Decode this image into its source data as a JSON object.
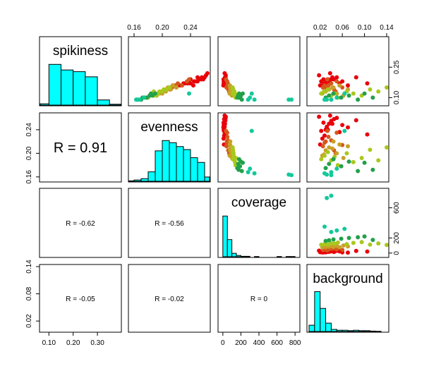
{
  "chart_data": {
    "type": "scatter",
    "kind": "pairs-matrix",
    "variables": [
      "spikiness",
      "evenness",
      "coverage",
      "background"
    ],
    "axis_ticks": {
      "spikiness": [
        "0.10",
        "0.20",
        "0.30"
      ],
      "evenness": [
        "0.16",
        "0.20",
        "0.24"
      ],
      "coverage": [
        "0",
        "200",
        "400",
        "600",
        "800"
      ],
      "background": [
        "0.02",
        "0.06",
        "0.10",
        "0.14"
      ]
    },
    "axis_ticks_right": {
      "spikiness": [
        "0.10",
        "0.15",
        "0.20",
        "0.25"
      ],
      "coverage": [
        "0",
        "200",
        "400",
        "600"
      ]
    },
    "axis_tick_labels_shown": {
      "bottom_spikiness": [
        "0.10",
        "0.20",
        "0.30"
      ],
      "top_evenness": [
        "0.16",
        "0.20",
        "0.24"
      ],
      "bottom_coverage": [
        "0",
        "200",
        "400",
        "600",
        "800"
      ],
      "top_background": [
        "0.02",
        "0.06",
        "0.10",
        "0.14"
      ],
      "left_evenness": [
        "0.16",
        "0.20",
        "0.24"
      ],
      "left_background": [
        "0.02",
        "0.08",
        "0.14"
      ],
      "right_spikiness": [
        "0.10",
        "0.25"
      ],
      "right_coverage": [
        "0",
        "200",
        "600"
      ]
    },
    "axis_ranges": {
      "spikiness": [
        0.07,
        0.39
      ],
      "evenness": [
        0.155,
        0.265
      ],
      "coverage": [
        -30,
        830
      ],
      "background": [
        0.0,
        0.14
      ]
    },
    "correlations": [
      {
        "row": "evenness",
        "col": "spikiness",
        "label": "R = 0.91",
        "size": "large"
      },
      {
        "row": "coverage",
        "col": "spikiness",
        "label": "R = -0.62",
        "size": "small"
      },
      {
        "row": "coverage",
        "col": "evenness",
        "label": "R = -0.56",
        "size": "small"
      },
      {
        "row": "background",
        "col": "spikiness",
        "label": "R = -0.05",
        "size": "small"
      },
      {
        "row": "background",
        "col": "evenness",
        "label": "R = -0.02",
        "size": "small"
      },
      {
        "row": "background",
        "col": "coverage",
        "label": "R = 0",
        "size": "small"
      }
    ],
    "histograms": {
      "spikiness": {
        "breaks": [
          0.05,
          0.1,
          0.15,
          0.2,
          0.25,
          0.3,
          0.35,
          0.4
        ],
        "density": [
          0.03,
          0.95,
          0.82,
          0.78,
          0.66,
          0.12,
          0.02
        ]
      },
      "evenness": {
        "breaks": [
          0.15,
          0.16,
          0.17,
          0.18,
          0.19,
          0.2,
          0.21,
          0.22,
          0.23,
          0.24,
          0.25,
          0.26,
          0.27
        ],
        "density": [
          0.01,
          0.03,
          0.06,
          0.22,
          0.71,
          0.95,
          0.9,
          0.81,
          0.74,
          0.55,
          0.44,
          0.1
        ]
      },
      "coverage": {
        "breaks": [
          0,
          50,
          100,
          150,
          200,
          250,
          300,
          350,
          400,
          450,
          500,
          550,
          600,
          650,
          700,
          750,
          800
        ],
        "density": [
          0.95,
          0.4,
          0.08,
          0.03,
          0.01,
          0.01,
          0,
          0.005,
          0,
          0,
          0,
          0,
          0.005,
          0,
          0.005,
          0.005
        ]
      },
      "background": {
        "breaks": [
          0,
          0.01,
          0.02,
          0.03,
          0.04,
          0.05,
          0.06,
          0.07,
          0.08,
          0.09,
          0.1,
          0.11,
          0.12,
          0.13,
          0.14
        ],
        "density": [
          0.15,
          0.95,
          0.55,
          0.2,
          0.05,
          0.03,
          0.03,
          0.02,
          0.03,
          0.02,
          0.02,
          0.01,
          0.005,
          0
        ]
      }
    },
    "points": [
      {
        "s": 0.16,
        "e": 0.215,
        "c": 12,
        "b": 0.02,
        "color": "#e8000a"
      },
      {
        "s": 0.16,
        "e": 0.225,
        "c": 8,
        "b": 0.024,
        "color": "#e8000a"
      },
      {
        "s": 0.17,
        "e": 0.23,
        "c": 15,
        "b": 0.028,
        "color": "#e8000a"
      },
      {
        "s": 0.17,
        "e": 0.24,
        "c": 10,
        "b": 0.03,
        "color": "#e8000a"
      },
      {
        "s": 0.18,
        "e": 0.245,
        "c": 20,
        "b": 0.032,
        "color": "#e8000a"
      },
      {
        "s": 0.18,
        "e": 0.25,
        "c": 18,
        "b": 0.036,
        "color": "#e8000a"
      },
      {
        "s": 0.19,
        "e": 0.255,
        "c": 25,
        "b": 0.04,
        "color": "#e8000a"
      },
      {
        "s": 0.19,
        "e": 0.258,
        "c": 14,
        "b": 0.045,
        "color": "#e8000a"
      },
      {
        "s": 0.2,
        "e": 0.26,
        "c": 30,
        "b": 0.05,
        "color": "#e8000a"
      },
      {
        "s": 0.17,
        "e": 0.236,
        "c": 22,
        "b": 0.055,
        "color": "#e8000a"
      },
      {
        "s": 0.18,
        "e": 0.248,
        "c": 10,
        "b": 0.06,
        "color": "#e8000a"
      },
      {
        "s": 0.16,
        "e": 0.244,
        "c": 6,
        "b": 0.07,
        "color": "#e8000a"
      },
      {
        "s": 0.2,
        "e": 0.256,
        "c": 28,
        "b": 0.085,
        "color": "#e8000a"
      },
      {
        "s": 0.17,
        "e": 0.232,
        "c": 20,
        "b": 0.105,
        "color": "#e8000a"
      },
      {
        "s": 0.18,
        "e": 0.238,
        "c": 12,
        "b": 0.022,
        "color": "#e8000a"
      },
      {
        "s": 0.19,
        "e": 0.252,
        "c": 8,
        "b": 0.026,
        "color": "#e8000a"
      },
      {
        "s": 0.21,
        "e": 0.262,
        "c": 32,
        "b": 0.018,
        "color": "#e8000a"
      },
      {
        "s": 0.19,
        "e": 0.24,
        "c": 16,
        "b": 0.034,
        "color": "#e8000a"
      },
      {
        "s": 0.22,
        "e": 0.264,
        "c": 20,
        "b": 0.038,
        "color": "#e8000a"
      },
      {
        "s": 0.2,
        "e": 0.25,
        "c": 24,
        "b": 0.042,
        "color": "#e8000a"
      },
      {
        "s": 0.15,
        "e": 0.212,
        "c": 40,
        "b": 0.025,
        "color": "#d4581c"
      },
      {
        "s": 0.15,
        "e": 0.22,
        "c": 45,
        "b": 0.03,
        "color": "#d4581c"
      },
      {
        "s": 0.16,
        "e": 0.228,
        "c": 50,
        "b": 0.035,
        "color": "#d4581c"
      },
      {
        "s": 0.17,
        "e": 0.222,
        "c": 55,
        "b": 0.04,
        "color": "#d4581c"
      },
      {
        "s": 0.14,
        "e": 0.205,
        "c": 60,
        "b": 0.045,
        "color": "#d4581c"
      },
      {
        "s": 0.18,
        "e": 0.235,
        "c": 48,
        "b": 0.05,
        "color": "#d4581c"
      },
      {
        "s": 0.16,
        "e": 0.218,
        "c": 58,
        "b": 0.028,
        "color": "#d4581c"
      },
      {
        "s": 0.15,
        "e": 0.214,
        "c": 42,
        "b": 0.06,
        "color": "#d4581c"
      },
      {
        "s": 0.19,
        "e": 0.238,
        "c": 35,
        "b": 0.033,
        "color": "#d4581c"
      },
      {
        "s": 0.13,
        "e": 0.2,
        "c": 70,
        "b": 0.048,
        "color": "#d4581c"
      },
      {
        "s": 0.12,
        "e": 0.196,
        "c": 75,
        "b": 0.024,
        "color": "#c8a028"
      },
      {
        "s": 0.13,
        "e": 0.205,
        "c": 80,
        "b": 0.03,
        "color": "#c8a028"
      },
      {
        "s": 0.14,
        "e": 0.21,
        "c": 85,
        "b": 0.036,
        "color": "#c8a028"
      },
      {
        "s": 0.15,
        "e": 0.208,
        "c": 90,
        "b": 0.042,
        "color": "#c8a028"
      },
      {
        "s": 0.12,
        "e": 0.2,
        "c": 95,
        "b": 0.05,
        "color": "#c8a028"
      },
      {
        "s": 0.16,
        "e": 0.215,
        "c": 78,
        "b": 0.055,
        "color": "#c8a028"
      },
      {
        "s": 0.11,
        "e": 0.192,
        "c": 100,
        "b": 0.062,
        "color": "#c8a028"
      },
      {
        "s": 0.14,
        "e": 0.212,
        "c": 88,
        "b": 0.07,
        "color": "#c8a028"
      },
      {
        "s": 0.13,
        "e": 0.198,
        "c": 92,
        "b": 0.027,
        "color": "#c8a028"
      },
      {
        "s": 0.15,
        "e": 0.22,
        "c": 82,
        "b": 0.044,
        "color": "#c8a028"
      },
      {
        "s": 0.12,
        "e": 0.19,
        "c": 110,
        "b": 0.022,
        "color": "#a8c81e"
      },
      {
        "s": 0.13,
        "e": 0.196,
        "c": 120,
        "b": 0.028,
        "color": "#a8c81e"
      },
      {
        "s": 0.14,
        "e": 0.202,
        "c": 115,
        "b": 0.034,
        "color": "#a8c81e"
      },
      {
        "s": 0.11,
        "e": 0.188,
        "c": 130,
        "b": 0.04,
        "color": "#a8c81e"
      },
      {
        "s": 0.12,
        "e": 0.194,
        "c": 125,
        "b": 0.046,
        "color": "#a8c81e"
      },
      {
        "s": 0.1,
        "e": 0.18,
        "c": 140,
        "b": 0.052,
        "color": "#a8c81e"
      },
      {
        "s": 0.13,
        "e": 0.2,
        "c": 118,
        "b": 0.068,
        "color": "#a8c81e"
      },
      {
        "s": 0.12,
        "e": 0.185,
        "c": 135,
        "b": 0.08,
        "color": "#a8c81e"
      },
      {
        "s": 0.11,
        "e": 0.192,
        "c": 145,
        "b": 0.095,
        "color": "#a8c81e"
      },
      {
        "s": 0.14,
        "e": 0.206,
        "c": 112,
        "b": 0.11,
        "color": "#a8c81e"
      },
      {
        "s": 0.13,
        "e": 0.188,
        "c": 128,
        "b": 0.125,
        "color": "#a8c81e"
      },
      {
        "s": 0.15,
        "e": 0.21,
        "c": 108,
        "b": 0.14,
        "color": "#a8c81e"
      },
      {
        "s": 0.1,
        "e": 0.175,
        "c": 160,
        "b": 0.03,
        "color": "#22a04a"
      },
      {
        "s": 0.11,
        "e": 0.182,
        "c": 170,
        "b": 0.036,
        "color": "#22a04a"
      },
      {
        "s": 0.12,
        "e": 0.19,
        "c": 180,
        "b": 0.044,
        "color": "#22a04a"
      },
      {
        "s": 0.1,
        "e": 0.178,
        "c": 190,
        "b": 0.058,
        "color": "#22a04a"
      },
      {
        "s": 0.11,
        "e": 0.186,
        "c": 200,
        "b": 0.072,
        "color": "#22a04a"
      },
      {
        "s": 0.09,
        "e": 0.17,
        "c": 210,
        "b": 0.088,
        "color": "#22a04a"
      },
      {
        "s": 0.12,
        "e": 0.184,
        "c": 220,
        "b": 0.1,
        "color": "#22a04a"
      },
      {
        "s": 0.1,
        "e": 0.172,
        "c": 175,
        "b": 0.115,
        "color": "#22a04a"
      },
      {
        "s": 0.09,
        "e": 0.168,
        "c": 280,
        "b": 0.04,
        "color": "#14c89a"
      },
      {
        "s": 0.1,
        "e": 0.174,
        "c": 300,
        "b": 0.05,
        "color": "#14c89a"
      },
      {
        "s": 0.09,
        "e": 0.166,
        "c": 350,
        "b": 0.028,
        "color": "#14c89a"
      },
      {
        "s": 0.12,
        "e": 0.238,
        "c": 320,
        "b": 0.064,
        "color": "#14c89a"
      },
      {
        "s": 0.09,
        "e": 0.164,
        "c": 730,
        "b": 0.032,
        "color": "#14c89a"
      },
      {
        "s": 0.09,
        "e": 0.163,
        "c": 760,
        "b": 0.04,
        "color": "#14c89a"
      }
    ]
  }
}
